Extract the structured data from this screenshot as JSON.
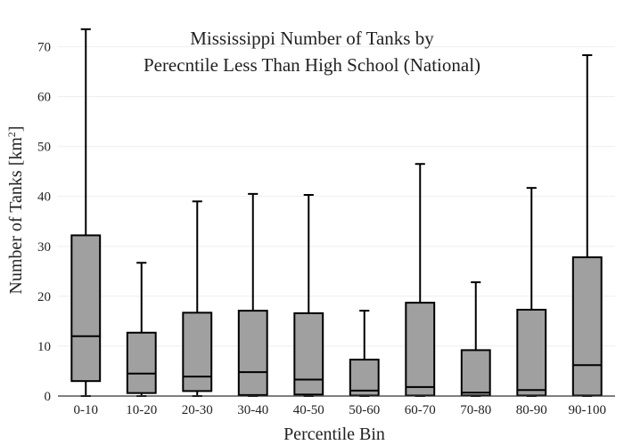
{
  "chart_data": {
    "type": "box",
    "title_lines": [
      "Mississippi Number of Tanks by",
      "Perecntile Less Than High School (National)"
    ],
    "xlabel": "Percentile Bin",
    "ylabel_main": "Number of Tanks  [km",
    "ylabel_sup": "2",
    "ylabel_close": "]",
    "ylim": [
      0,
      74
    ],
    "yticks": [
      0,
      10,
      20,
      30,
      40,
      50,
      60,
      70
    ],
    "categories": [
      "0-10",
      "10-20",
      "20-30",
      "30-40",
      "40-50",
      "50-60",
      "60-70",
      "70-80",
      "80-90",
      "90-100"
    ],
    "boxes": [
      {
        "min": 0,
        "q1": 3.0,
        "median": 12.0,
        "q3": 32.2,
        "max": 73.5
      },
      {
        "min": 0,
        "q1": 0.6,
        "median": 4.5,
        "q3": 12.7,
        "max": 26.7
      },
      {
        "min": 0,
        "q1": 1.0,
        "median": 3.9,
        "q3": 16.7,
        "max": 39.0
      },
      {
        "min": 0,
        "q1": 0.2,
        "median": 4.8,
        "q3": 17.1,
        "max": 40.5
      },
      {
        "min": 0,
        "q1": 0.3,
        "median": 3.3,
        "q3": 16.6,
        "max": 40.3
      },
      {
        "min": 0,
        "q1": 0.1,
        "median": 1.1,
        "q3": 7.3,
        "max": 17.1
      },
      {
        "min": 0,
        "q1": 0.1,
        "median": 1.8,
        "q3": 18.7,
        "max": 46.5
      },
      {
        "min": 0,
        "q1": 0.1,
        "median": 0.7,
        "q3": 9.2,
        "max": 22.8
      },
      {
        "min": 0,
        "q1": 0.1,
        "median": 1.2,
        "q3": 17.3,
        "max": 41.7
      },
      {
        "min": 0,
        "q1": 0.1,
        "median": 6.2,
        "q3": 27.8,
        "max": 68.3
      }
    ]
  }
}
